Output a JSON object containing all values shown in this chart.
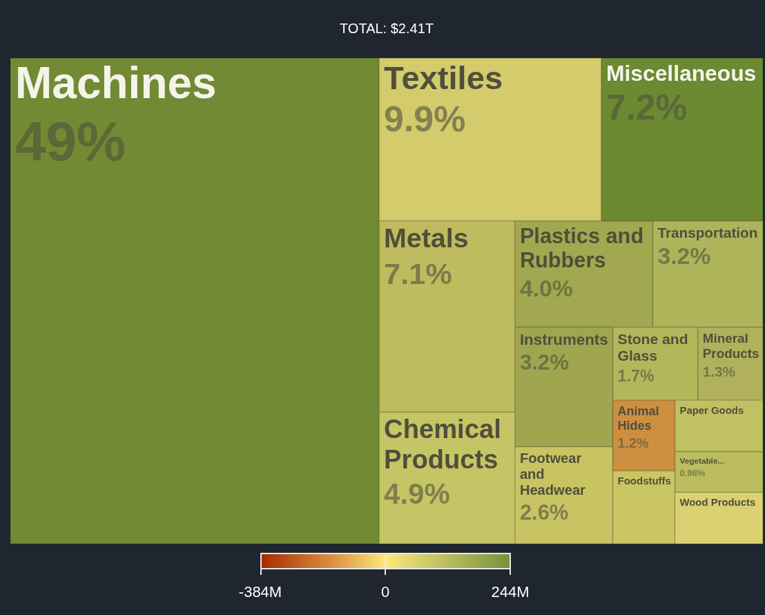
{
  "chart_data": {
    "type": "other",
    "title": "TOTAL: $2.41T",
    "categories": [
      "Machines",
      "Textiles",
      "Miscellaneous",
      "Metals",
      "Chemical Products",
      "Plastics and Rubbers",
      "Transportation",
      "Instruments",
      "Footwear and Headwear",
      "Stone and Glass",
      "Mineral Products",
      "Animal Hides",
      "Foodstuffs",
      "Paper Goods",
      "Vegetable...",
      "Wood Products"
    ],
    "values": [
      49,
      9.9,
      7.2,
      7.1,
      4.9,
      4.0,
      3.2,
      3.2,
      2.6,
      1.7,
      1.3,
      1.2,
      null,
      null,
      0.98,
      null
    ],
    "value_labels": [
      "49%",
      "9.9%",
      "7.2%",
      "7.1%",
      "4.9%",
      "4.0%",
      "3.2%",
      "3.2%",
      "2.6%",
      "1.7%",
      "1.3%",
      "1.2%",
      null,
      null,
      "0.98%",
      null
    ],
    "colors": [
      "#728a33",
      "#d3cb6c",
      "#6b8a32",
      "#bfbc5f",
      "#c6c566",
      "#a1a84f",
      "#aeb45a",
      "#a0a650",
      "#c8c463",
      "#b3b75b",
      "#b1b05c",
      "#cd9040",
      "#cbc664",
      "#c1c062",
      "#bcbd5e",
      "#dcd172"
    ],
    "annotations": [
      "-384M",
      "0",
      "244M"
    ]
  }
}
